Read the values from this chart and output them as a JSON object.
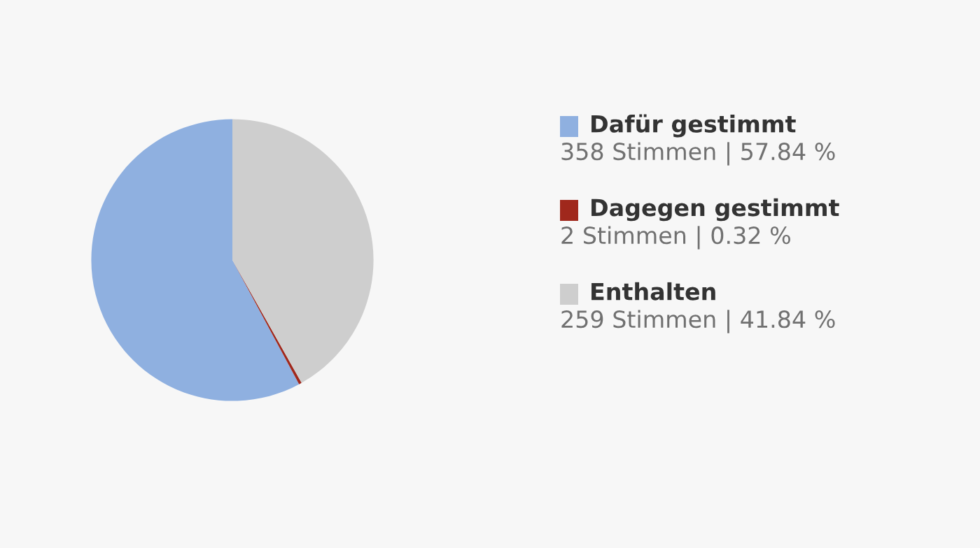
{
  "chart_data": {
    "type": "pie",
    "categories": [
      "Dafür gestimmt",
      "Dagegen gestimmt",
      "Enthalten"
    ],
    "values": [
      358,
      2,
      259
    ],
    "colors": [
      "#8fb0e0",
      "#a0281c",
      "#cecece"
    ],
    "value_labels": [
      "358 Stimmen | 57.84 %",
      "2 Stimmen | 0.32 %",
      "259 Stimmen | 41.84 %"
    ],
    "legend": "right"
  }
}
